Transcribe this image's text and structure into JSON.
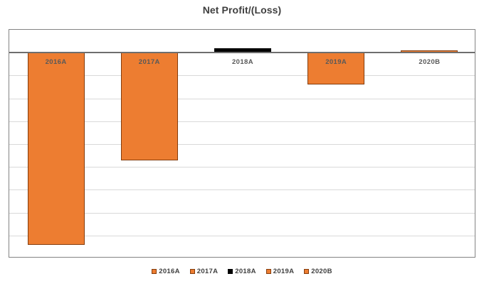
{
  "title": "Net Profit/(Loss)",
  "colors": {
    "bar_orange": "#ED7D31",
    "bar_orange_border": "#843C0C",
    "bar_black": "#000000",
    "axis_zero_line": "#6E6E6E",
    "plot_border": "#848484",
    "gridline": "#D9D9D9",
    "title_text": "#3F3F3F",
    "category_label_text": "#595959"
  },
  "chart_data": {
    "type": "bar",
    "title": "Net Profit/(Loss)",
    "categories": [
      "2016A",
      "2017A",
      "2018A",
      "2019A",
      "2020B"
    ],
    "values": [
      -8.4,
      -4.7,
      0.2,
      -1.4,
      0.1
    ],
    "value_note": "y-axis has no numeric tick labels; values estimated in gridline divisions relative to the zero line",
    "bar_colors": [
      "#ED7D31",
      "#ED7D31",
      "#000000",
      "#ED7D31",
      "#ED7D31"
    ],
    "bar_border_colors": [
      "#843C0C",
      "#843C0C",
      "#000000",
      "#843C0C",
      "#843C0C"
    ],
    "xlabel": "",
    "ylabel": "",
    "ylim": [
      -9,
      1
    ],
    "gridline_step": 1,
    "grid": true,
    "legend_position": "bottom",
    "legend_entries": [
      {
        "label": "2016A",
        "color": "#ED7D31",
        "border": "#843C0C"
      },
      {
        "label": "2017A",
        "color": "#ED7D31",
        "border": "#843C0C"
      },
      {
        "label": "2018A",
        "color": "#000000",
        "border": "#000000"
      },
      {
        "label": "2019A",
        "color": "#ED7D31",
        "border": "#843C0C"
      },
      {
        "label": "2020B",
        "color": "#ED7D31",
        "border": "#843C0C"
      }
    ]
  }
}
